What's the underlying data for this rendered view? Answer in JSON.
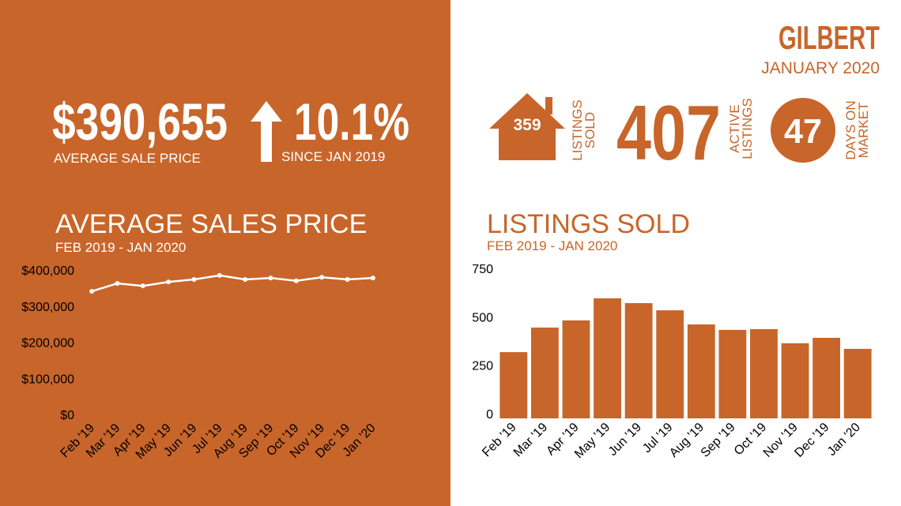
{
  "header": {
    "title": "GILBERT",
    "subtitle": "JANUARY 2020"
  },
  "stats": {
    "average_price": {
      "value": "$390,655",
      "label": "AVERAGE  SALE PRICE"
    },
    "change": {
      "value": "10.1%",
      "label": "SINCE JAN 2019"
    },
    "listings_sold": {
      "value": "359",
      "label_lines": [
        "LISTINGS",
        "SOLD"
      ]
    },
    "active_listings": {
      "value": "407",
      "label_lines": [
        "ACTIVE",
        "LISTINGS"
      ]
    },
    "days_on_market": {
      "value": "47",
      "label_lines": [
        "DAYS ON",
        "MARKET"
      ]
    }
  },
  "chart_data": [
    {
      "type": "line",
      "title": "AVERAGE SALES PRICE",
      "subtitle": "FEB 2019 - JAN 2020",
      "categories": [
        "Feb '19",
        "Mar '19",
        "Apr '19",
        "May '19",
        "Jun '19",
        "Jul '19",
        "Aug '19",
        "Sep '19",
        "Oct '19",
        "Nov '19",
        "Dec '19",
        "Jan '20"
      ],
      "values": [
        354000,
        376000,
        369000,
        380000,
        387000,
        398000,
        387000,
        391000,
        383000,
        393000,
        387000,
        391000
      ],
      "color": "#ffffff",
      "ylim": [
        0,
        400000
      ],
      "yticks": [
        {
          "value": 0,
          "label": "$0"
        },
        {
          "value": 100000,
          "label": "$100,000"
        },
        {
          "value": 200000,
          "label": "$200,000"
        },
        {
          "value": 300000,
          "label": "$300,000"
        },
        {
          "value": 400000,
          "label": "$400,000"
        }
      ],
      "grid": true
    },
    {
      "type": "bar",
      "title": "LISTINGS SOLD",
      "subtitle": "FEB 2019 - JAN 2020",
      "categories": [
        "Feb '19",
        "Mar '19",
        "Apr '19",
        "May '19",
        "Jun '19",
        "Jul '19",
        "Aug '19",
        "Sep '19",
        "Oct '19",
        "Nov '19",
        "Dec '19",
        "Jan '20"
      ],
      "values": [
        342,
        469,
        506,
        620,
        595,
        558,
        485,
        457,
        461,
        388,
        416,
        359
      ],
      "color": "#c8652a",
      "ylim": [
        0,
        750
      ],
      "yticks": [
        0,
        250,
        500,
        750
      ],
      "grid": true
    }
  ]
}
